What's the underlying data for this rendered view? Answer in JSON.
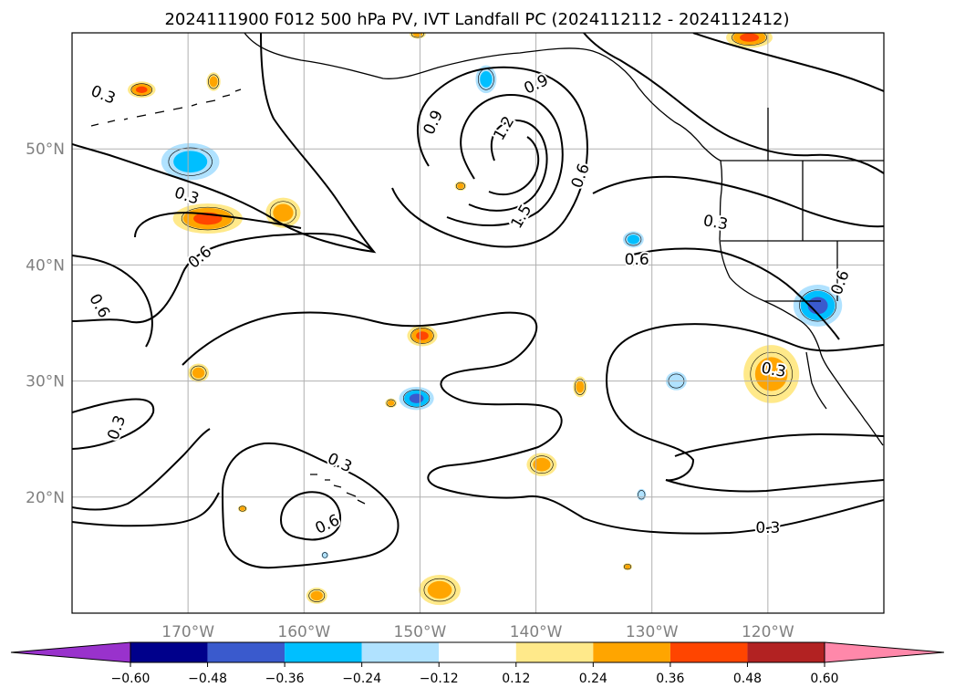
{
  "title": "2024111900 F012 500 hPa PV, IVT Landfall PC (2024112112 - 2024112412)",
  "map": {
    "projection": "PlateCarree",
    "lon_range": [
      -180,
      -110
    ],
    "lat_range": [
      10,
      60
    ],
    "grid": true,
    "lon_ticks": [
      {
        "lon": -170,
        "label": "170°W"
      },
      {
        "lon": -160,
        "label": "160°W"
      },
      {
        "lon": -150,
        "label": "150°W"
      },
      {
        "lon": -140,
        "label": "140°W"
      },
      {
        "lon": -130,
        "label": "130°W"
      },
      {
        "lon": -120,
        "label": "120°W"
      }
    ],
    "lat_ticks": [
      {
        "lat": 20,
        "label": "20°N"
      },
      {
        "lat": 30,
        "label": "30°N"
      },
      {
        "lat": 40,
        "label": "40°N"
      },
      {
        "lat": 50,
        "label": "50°N"
      }
    ]
  },
  "contours": {
    "field": "500 hPa PV",
    "labels": [
      {
        "text": "0.3",
        "lon": -170.1,
        "lat": 46.0,
        "rot": 18
      },
      {
        "text": "0.6",
        "lon": -169.0,
        "lat": 40.7,
        "rot": -40
      },
      {
        "text": "0.6",
        "lon": -177.6,
        "lat": 36.5,
        "rot": 60
      },
      {
        "text": "0.3",
        "lon": -176.2,
        "lat": 26.0,
        "rot": -70
      },
      {
        "text": "0.9",
        "lon": -148.9,
        "lat": 52.3,
        "rot": -65
      },
      {
        "text": "0.9",
        "lon": -140.0,
        "lat": 55.6,
        "rot": -25
      },
      {
        "text": "1.2",
        "lon": -142.8,
        "lat": 51.8,
        "rot": -60
      },
      {
        "text": "1.5",
        "lon": -141.3,
        "lat": 44.2,
        "rot": -60
      },
      {
        "text": "0.6",
        "lon": -136.2,
        "lat": 47.7,
        "rot": -70
      },
      {
        "text": "0.3",
        "lon": -124.5,
        "lat": 43.7,
        "rot": 10
      },
      {
        "text": "0.6",
        "lon": -131.3,
        "lat": 40.5,
        "rot": 0
      },
      {
        "text": "0.3",
        "lon": -177.3,
        "lat": 54.7,
        "rot": 22
      },
      {
        "text": "0.6",
        "lon": -113.8,
        "lat": 38.5,
        "rot": -70
      },
      {
        "text": "0.3",
        "lon": -119.5,
        "lat": 31.0,
        "rot": 10
      },
      {
        "text": "0.3",
        "lon": -156.9,
        "lat": 23.0,
        "rot": 25
      },
      {
        "text": "0.6",
        "lon": -158.0,
        "lat": 17.7,
        "rot": -25
      },
      {
        "text": "0.3",
        "lon": -120.0,
        "lat": 17.4,
        "rot": 0
      }
    ]
  },
  "shading": {
    "field": "IVT Landfall PC",
    "blobs": [
      {
        "lon": -168.3,
        "lat": 44.0,
        "rx": 3.0,
        "ry": 1.3,
        "value": 0.42
      },
      {
        "lon": -161.8,
        "lat": 44.5,
        "rx": 1.5,
        "ry": 1.3,
        "value": 0.3
      },
      {
        "lon": -174.0,
        "lat": 55.1,
        "rx": 1.2,
        "ry": 0.7,
        "value": 0.42
      },
      {
        "lon": -167.8,
        "lat": 55.8,
        "rx": 0.6,
        "ry": 0.8,
        "value": 0.28
      },
      {
        "lon": -169.8,
        "lat": 48.9,
        "rx": 2.5,
        "ry": 1.6,
        "value": -0.3
      },
      {
        "lon": -149.8,
        "lat": 33.9,
        "rx": 1.3,
        "ry": 0.9,
        "value": 0.36
      },
      {
        "lon": -169.1,
        "lat": 30.7,
        "rx": 0.9,
        "ry": 0.8,
        "value": 0.28
      },
      {
        "lon": -152.5,
        "lat": 28.1,
        "rx": 0.5,
        "ry": 0.4,
        "value": 0.3
      },
      {
        "lon": -150.3,
        "lat": 28.5,
        "rx": 1.5,
        "ry": 1.0,
        "value": -0.42
      },
      {
        "lon": -139.5,
        "lat": 22.8,
        "rx": 1.3,
        "ry": 1.0,
        "value": 0.3
      },
      {
        "lon": -136.2,
        "lat": 29.5,
        "rx": 0.6,
        "ry": 0.9,
        "value": 0.3
      },
      {
        "lon": -127.9,
        "lat": 30.0,
        "rx": 0.9,
        "ry": 0.8,
        "value": -0.18
      },
      {
        "lon": -119.7,
        "lat": 30.6,
        "rx": 2.4,
        "ry": 2.5,
        "value": 0.3
      },
      {
        "lon": -115.7,
        "lat": 36.5,
        "rx": 2.1,
        "ry": 1.8,
        "value": -0.36
      },
      {
        "lon": -131.6,
        "lat": 42.2,
        "rx": 0.9,
        "ry": 0.7,
        "value": -0.3
      },
      {
        "lon": -144.3,
        "lat": 56.0,
        "rx": 0.9,
        "ry": 1.2,
        "value": -0.3
      },
      {
        "lon": -146.5,
        "lat": 46.8,
        "rx": 0.5,
        "ry": 0.4,
        "value": 0.3
      },
      {
        "lon": -150.2,
        "lat": 59.9,
        "rx": 0.7,
        "ry": 0.4,
        "value": 0.3
      },
      {
        "lon": -148.3,
        "lat": 12.0,
        "rx": 1.8,
        "ry": 1.3,
        "value": 0.3
      },
      {
        "lon": -158.9,
        "lat": 11.5,
        "rx": 0.9,
        "ry": 0.7,
        "value": 0.3
      },
      {
        "lon": -121.6,
        "lat": 59.6,
        "rx": 2.0,
        "ry": 0.9,
        "value": 0.42
      },
      {
        "lon": -130.9,
        "lat": 20.2,
        "rx": 0.4,
        "ry": 0.5,
        "value": -0.18
      },
      {
        "lon": -165.3,
        "lat": 19.0,
        "rx": 0.4,
        "ry": 0.3,
        "value": 0.3
      },
      {
        "lon": -132.1,
        "lat": 14.0,
        "rx": 0.4,
        "ry": 0.3,
        "value": 0.3
      },
      {
        "lon": -158.2,
        "lat": 15.0,
        "rx": 0.3,
        "ry": 0.3,
        "value": -0.2
      }
    ]
  },
  "colorbar": {
    "levels": [
      -0.6,
      -0.48,
      -0.36,
      -0.24,
      -0.12,
      0.12,
      0.24,
      0.36,
      0.48,
      0.6
    ],
    "tick_labels": [
      "−0.60",
      "−0.48",
      "−0.36",
      "−0.24",
      "−0.12",
      "0.12",
      "0.24",
      "0.36",
      "0.48",
      "0.60"
    ],
    "under_color": "#9932cc",
    "over_color": "#ff88aa",
    "colors": [
      "#00008b",
      "#3a5acd",
      "#00bfff",
      "#b0e2ff",
      "#ffffff",
      "#ffe98a",
      "#ffa500",
      "#ff4500",
      "#b22222"
    ]
  }
}
